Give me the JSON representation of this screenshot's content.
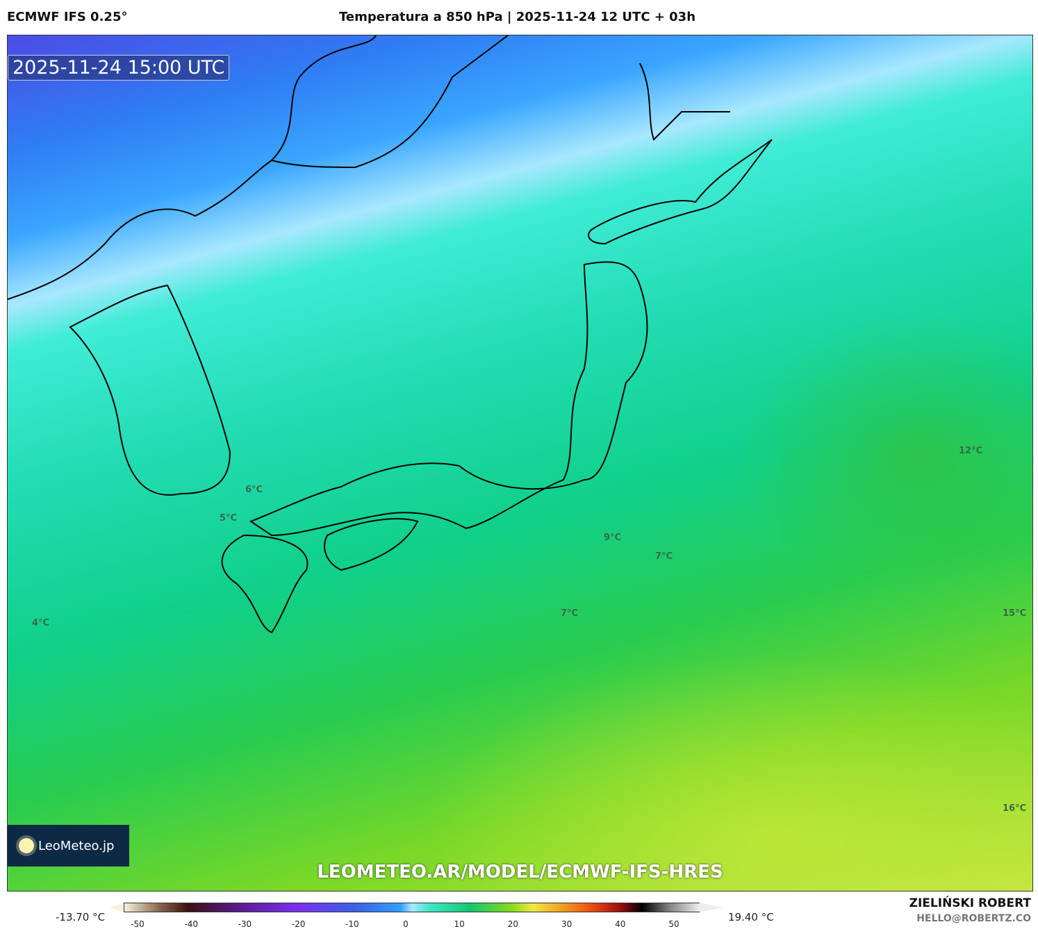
{
  "header": {
    "model": "ECMWF IFS 0.25°",
    "title": "Temperatura a 850 hPa | 2025-11-24 12 UTC + 03h"
  },
  "map": {
    "valid_time": "2025-11-24 15:00 UTC",
    "watermark_url": "LEOMETEO.AR/MODEL/ECMWF-IFS-HRES",
    "logo": "LeoMeteo.jp",
    "contour_labels": [
      "6°C",
      "5°C",
      "4°C",
      "9°C",
      "7°C",
      "7°C",
      "12°C",
      "15°C",
      "16°C"
    ]
  },
  "colorbar": {
    "min_label": "-13.70 °C",
    "max_label": "19.40 °C",
    "ticks": [
      "-50",
      "-40",
      "-30",
      "-20",
      "-10",
      "0",
      "10",
      "20",
      "30",
      "40",
      "50"
    ]
  },
  "author": {
    "name": "ZIELIŃSKI ROBERT",
    "email": "HELLO@ROBERTZ.CO"
  }
}
